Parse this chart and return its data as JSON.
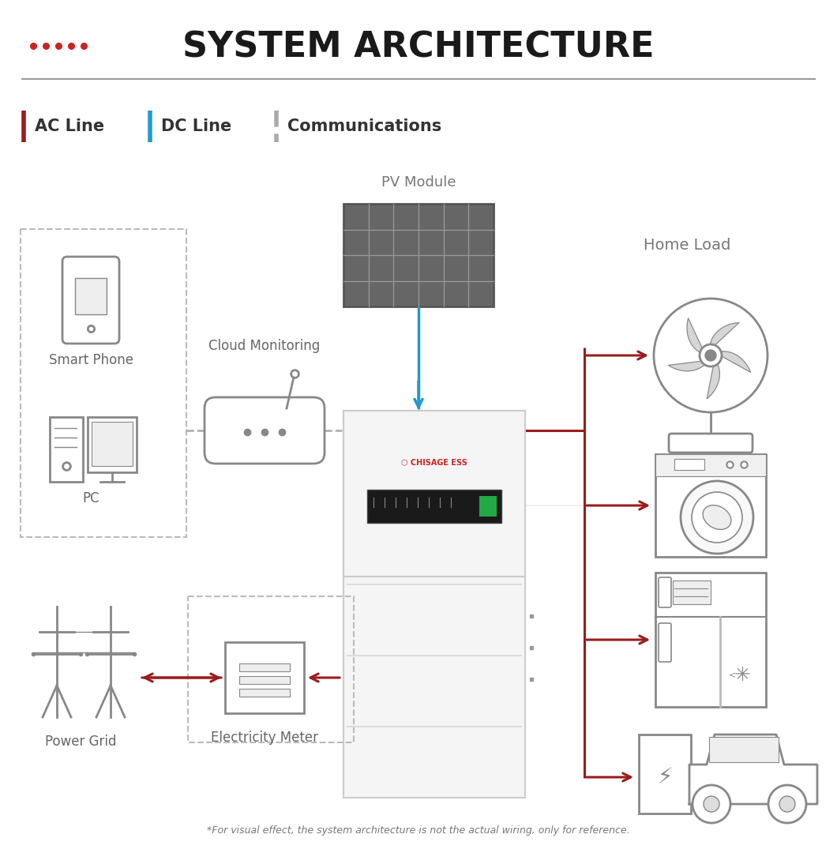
{
  "title": "SYSTEM ARCHITECTURE",
  "title_fontsize": 30,
  "bg_color": "#ffffff",
  "icon_color": "#888888",
  "icon_lw": 1.8,
  "ac_line_color": "#9b1c1c",
  "dc_line_color": "#2299cc",
  "comm_line_color": "#aaaaaa",
  "dots_color": "#cc2222",
  "legend_labels": [
    "AC Line",
    "DC Line",
    "Communications"
  ],
  "legend_colors": [
    "#9b1c1c",
    "#2299cc",
    "#aaaaaa"
  ],
  "labels": {
    "smartphone": "Smart Phone",
    "pc": "PC",
    "cloud": "Cloud Monitoring",
    "pv": "PV Module",
    "homeload": "Home Load",
    "powergrid": "Power Grid",
    "meter": "Electricity Meter"
  },
  "footnote": "*For visual effect, the system architecture is not the actual wiring, only for reference."
}
